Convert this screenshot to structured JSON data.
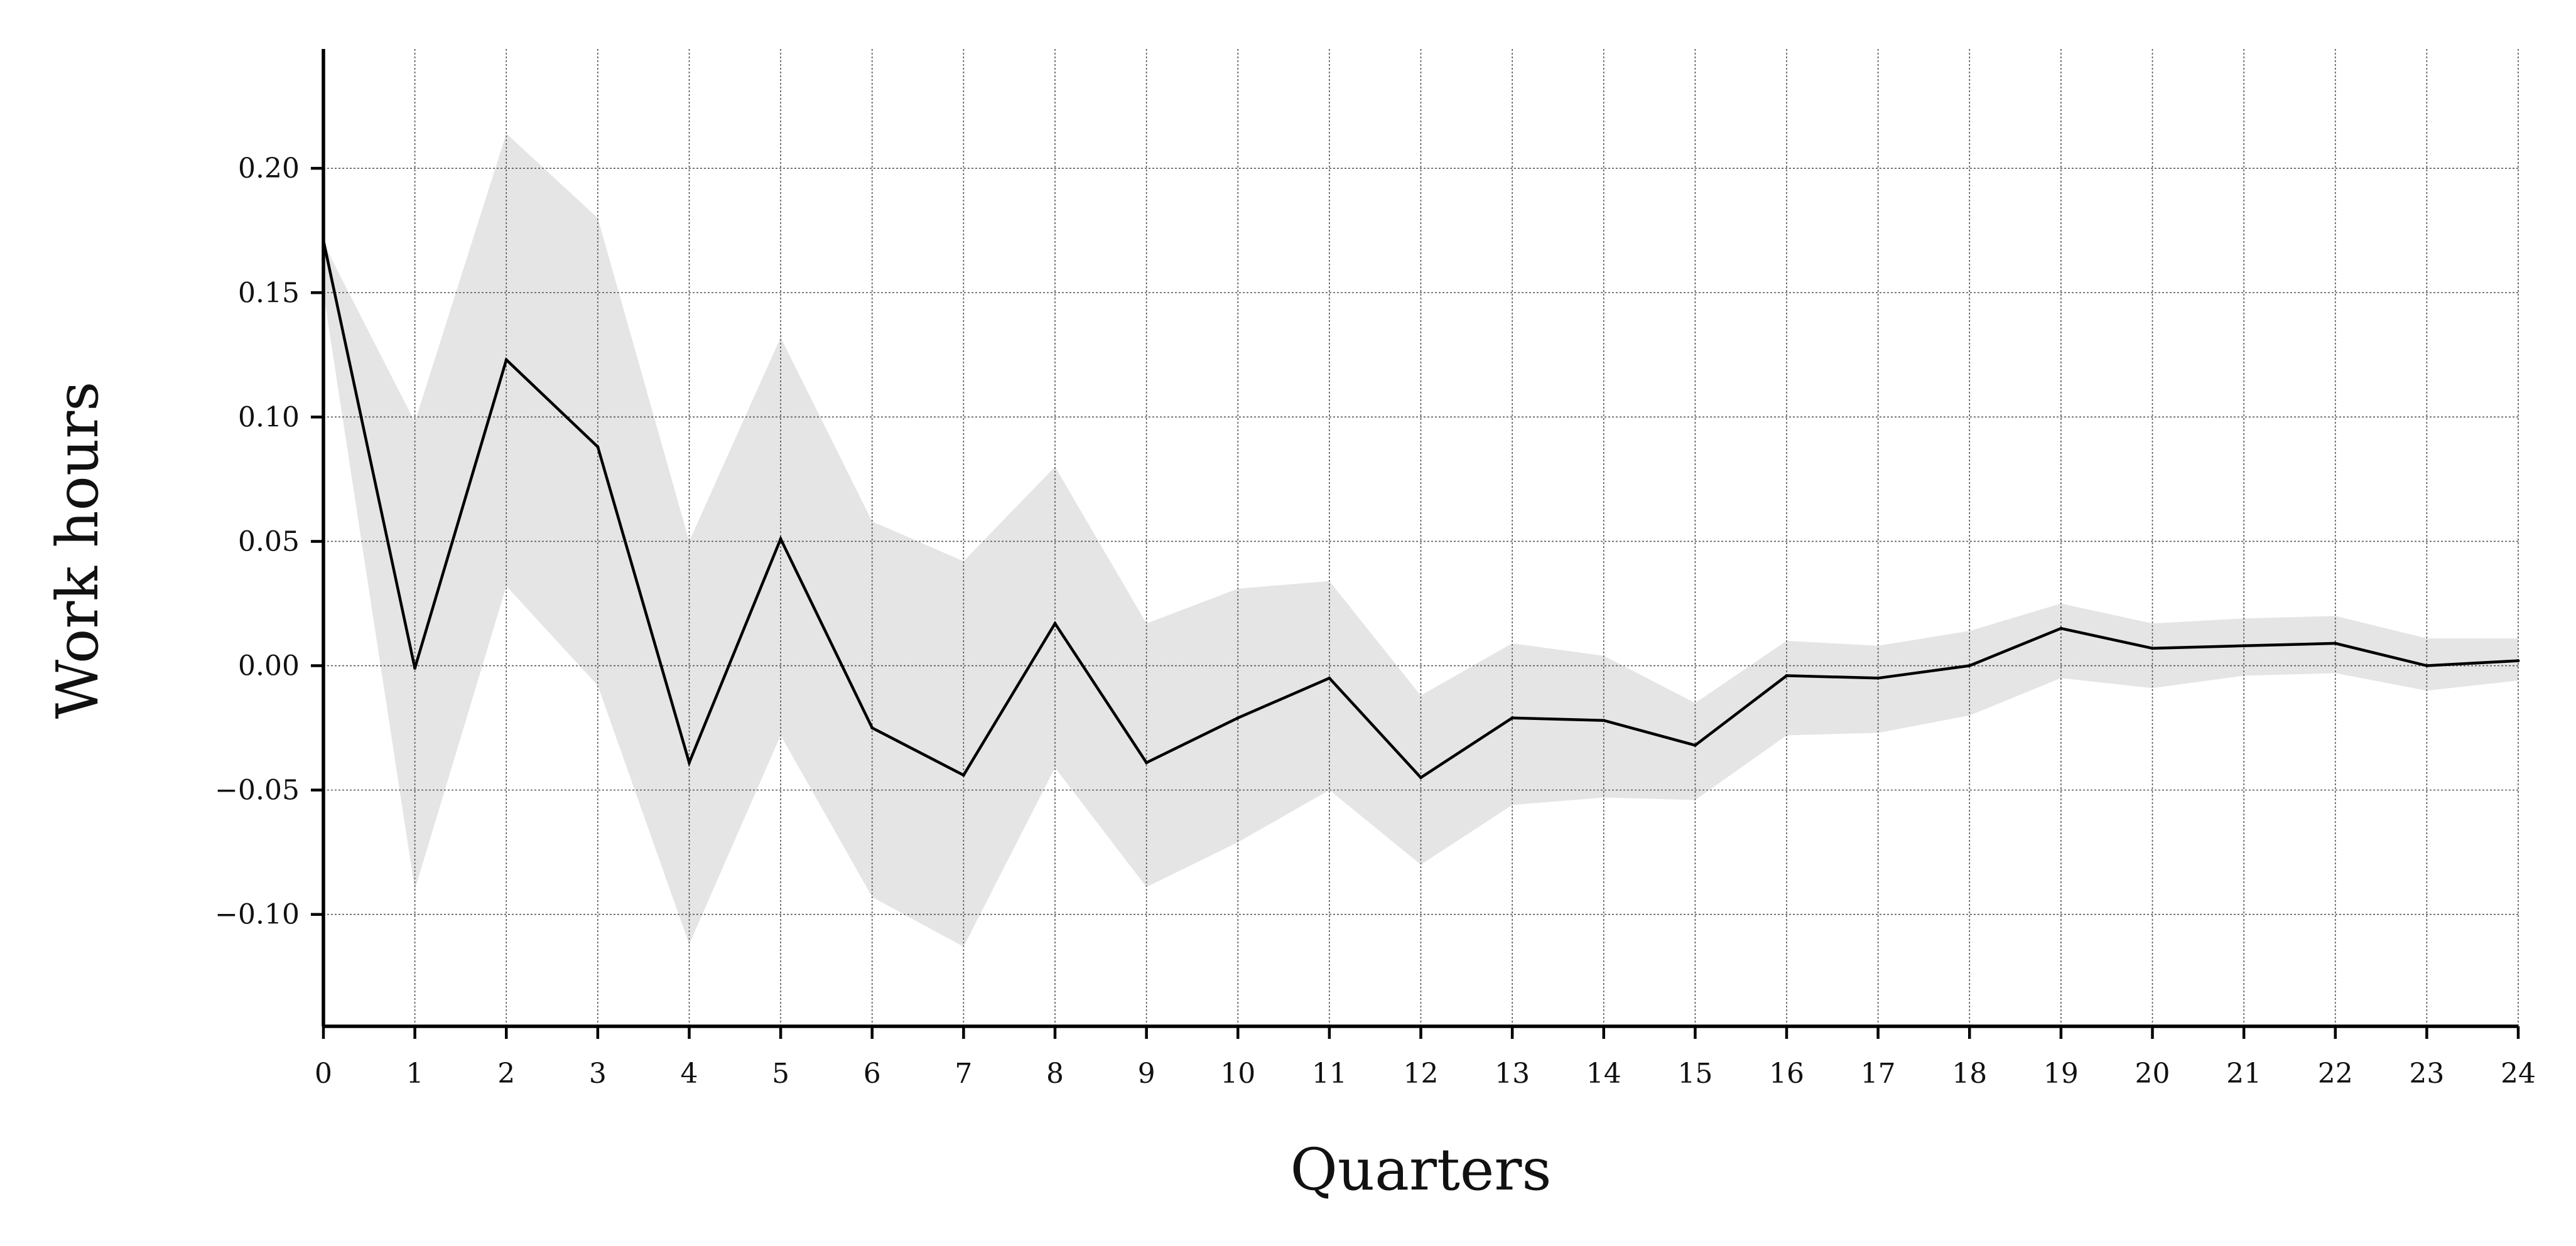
{
  "chart_data": {
    "type": "line",
    "title": "",
    "xlabel": "Quarters",
    "ylabel": "Work hours",
    "xlim": [
      0,
      24
    ],
    "ylim": [
      -0.145,
      0.248
    ],
    "grid": true,
    "x": [
      0,
      1,
      2,
      3,
      4,
      5,
      6,
      7,
      8,
      9,
      10,
      11,
      12,
      13,
      14,
      15,
      16,
      17,
      18,
      19,
      20,
      21,
      22,
      23,
      24
    ],
    "x_ticks": [
      "0",
      "1",
      "2",
      "3",
      "4",
      "5",
      "6",
      "7",
      "8",
      "9",
      "10",
      "11",
      "12",
      "13",
      "14",
      "15",
      "16",
      "17",
      "18",
      "19",
      "20",
      "21",
      "22",
      "23",
      "24"
    ],
    "y_ticks": [
      {
        "value": 0.2,
        "label": "0.20"
      },
      {
        "value": 0.15,
        "label": "0.15"
      },
      {
        "value": 0.1,
        "label": "0.10"
      },
      {
        "value": 0.05,
        "label": "0.05"
      },
      {
        "value": 0.0,
        "label": "0.00"
      },
      {
        "value": -0.05,
        "label": "−0.05"
      },
      {
        "value": -0.1,
        "label": "−0.10"
      }
    ],
    "series": [
      {
        "values": [
          0.171,
          -0.001,
          0.123,
          0.088,
          -0.039,
          0.051,
          -0.025,
          -0.044,
          0.017,
          -0.039,
          -0.021,
          -0.005,
          -0.045,
          -0.021,
          -0.022,
          -0.032,
          -0.004,
          -0.005,
          0.0,
          0.015,
          0.007,
          0.008,
          0.009,
          0.0,
          0.002
        ],
        "color": "#000000"
      }
    ],
    "band": {
      "upper": [
        0.17,
        0.098,
        0.214,
        0.18,
        0.05,
        0.132,
        0.058,
        0.042,
        0.08,
        0.017,
        0.031,
        0.034,
        -0.012,
        0.009,
        0.004,
        -0.015,
        0.01,
        0.008,
        0.014,
        0.025,
        0.017,
        0.019,
        0.02,
        0.011,
        0.011
      ],
      "lower": [
        0.15,
        -0.09,
        0.032,
        -0.008,
        -0.112,
        -0.028,
        -0.093,
        -0.113,
        -0.041,
        -0.089,
        -0.071,
        -0.05,
        -0.08,
        -0.056,
        -0.053,
        -0.054,
        -0.028,
        -0.027,
        -0.02,
        -0.005,
        -0.009,
        -0.004,
        -0.003,
        -0.01,
        -0.006
      ],
      "color": "#e5e5e5"
    }
  }
}
